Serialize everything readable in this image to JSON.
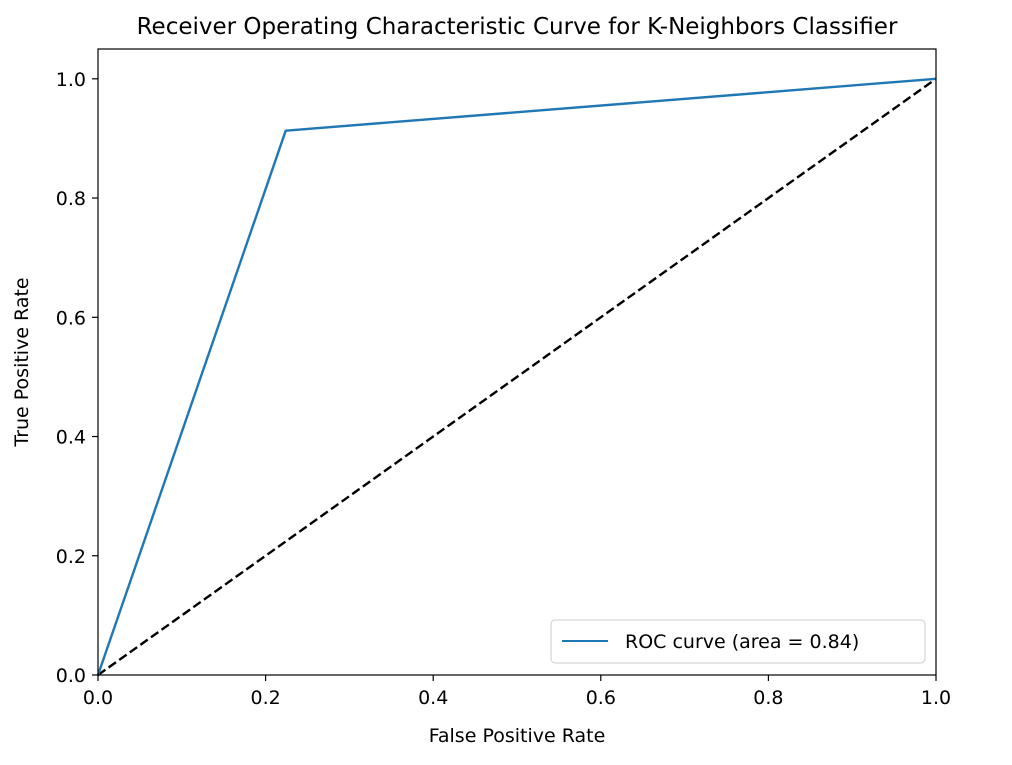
{
  "chart_data": {
    "type": "line",
    "title": "Receiver Operating Characteristic Curve for K-Neighbors Classifier",
    "xlabel": "False Positive Rate",
    "ylabel": "True Positive Rate",
    "xlim": [
      0.0,
      1.0
    ],
    "ylim": [
      0.0,
      1.05
    ],
    "xticks": [
      "0.0",
      "0.2",
      "0.4",
      "0.6",
      "0.8",
      "1.0"
    ],
    "yticks": [
      "0.0",
      "0.2",
      "0.4",
      "0.6",
      "0.8",
      "1.0"
    ],
    "grid": false,
    "legend_position": "lower-right",
    "series": [
      {
        "name": "ROC curve (area = 0.84)",
        "color": "#1f77b4",
        "line_style": "solid",
        "x": [
          0.0,
          0.224,
          1.0
        ],
        "y": [
          0.0,
          0.913,
          1.0
        ]
      }
    ],
    "reference_line": {
      "color": "#000000",
      "line_style": "dashed",
      "x": [
        0.0,
        1.0
      ],
      "y": [
        0.0,
        1.0
      ]
    }
  }
}
